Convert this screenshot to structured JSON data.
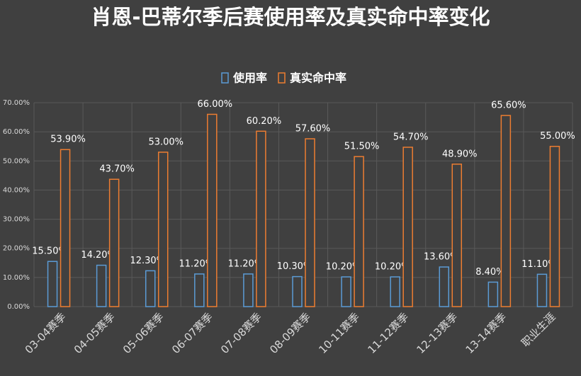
{
  "chart_data": {
    "type": "bar",
    "title": "肖恩-巴蒂尔季后赛使用率及真实命中率变化",
    "categories": [
      "03-04赛季",
      "04-05赛季",
      "05-06赛季",
      "06-07赛季",
      "07-08赛季",
      "08-09赛季",
      "10-11赛季",
      "11-12赛季",
      "12-13赛季",
      "13-14赛季",
      "职业生涯"
    ],
    "series": [
      {
        "name": "使用率",
        "color": "#5b9bd5",
        "values": [
          15.5,
          14.2,
          12.3,
          11.2,
          11.2,
          10.3,
          10.2,
          10.2,
          13.6,
          8.4,
          11.1
        ],
        "value_labels": [
          "15.50%",
          "14.20%",
          "12.30%",
          "11.20%",
          "11.20%",
          "10.30%",
          "10.20%",
          "10.20%",
          "13.60%",
          "8.40%",
          "11.10%"
        ]
      },
      {
        "name": "真实命中率",
        "color": "#ed7d31",
        "values": [
          53.9,
          43.7,
          53.0,
          66.0,
          60.2,
          57.6,
          51.5,
          54.7,
          48.9,
          65.6,
          55.0
        ],
        "value_labels": [
          "53.90%",
          "43.70%",
          "53.00%",
          "66.00%",
          "60.20%",
          "57.60%",
          "51.50%",
          "54.70%",
          "48.90%",
          "65.60%",
          "55.00%"
        ]
      }
    ],
    "ylim": [
      0,
      70
    ],
    "yticks": [
      {
        "value": 0,
        "label": "0.00%"
      },
      {
        "value": 10,
        "label": "10.00%"
      },
      {
        "value": 20,
        "label": "20.00%"
      },
      {
        "value": 30,
        "label": "30.00%"
      },
      {
        "value": 40,
        "label": "40.00%"
      },
      {
        "value": 50,
        "label": "50.00%"
      },
      {
        "value": 60,
        "label": "60.00%"
      },
      {
        "value": 70,
        "label": "70.00%"
      }
    ],
    "grid": true
  }
}
